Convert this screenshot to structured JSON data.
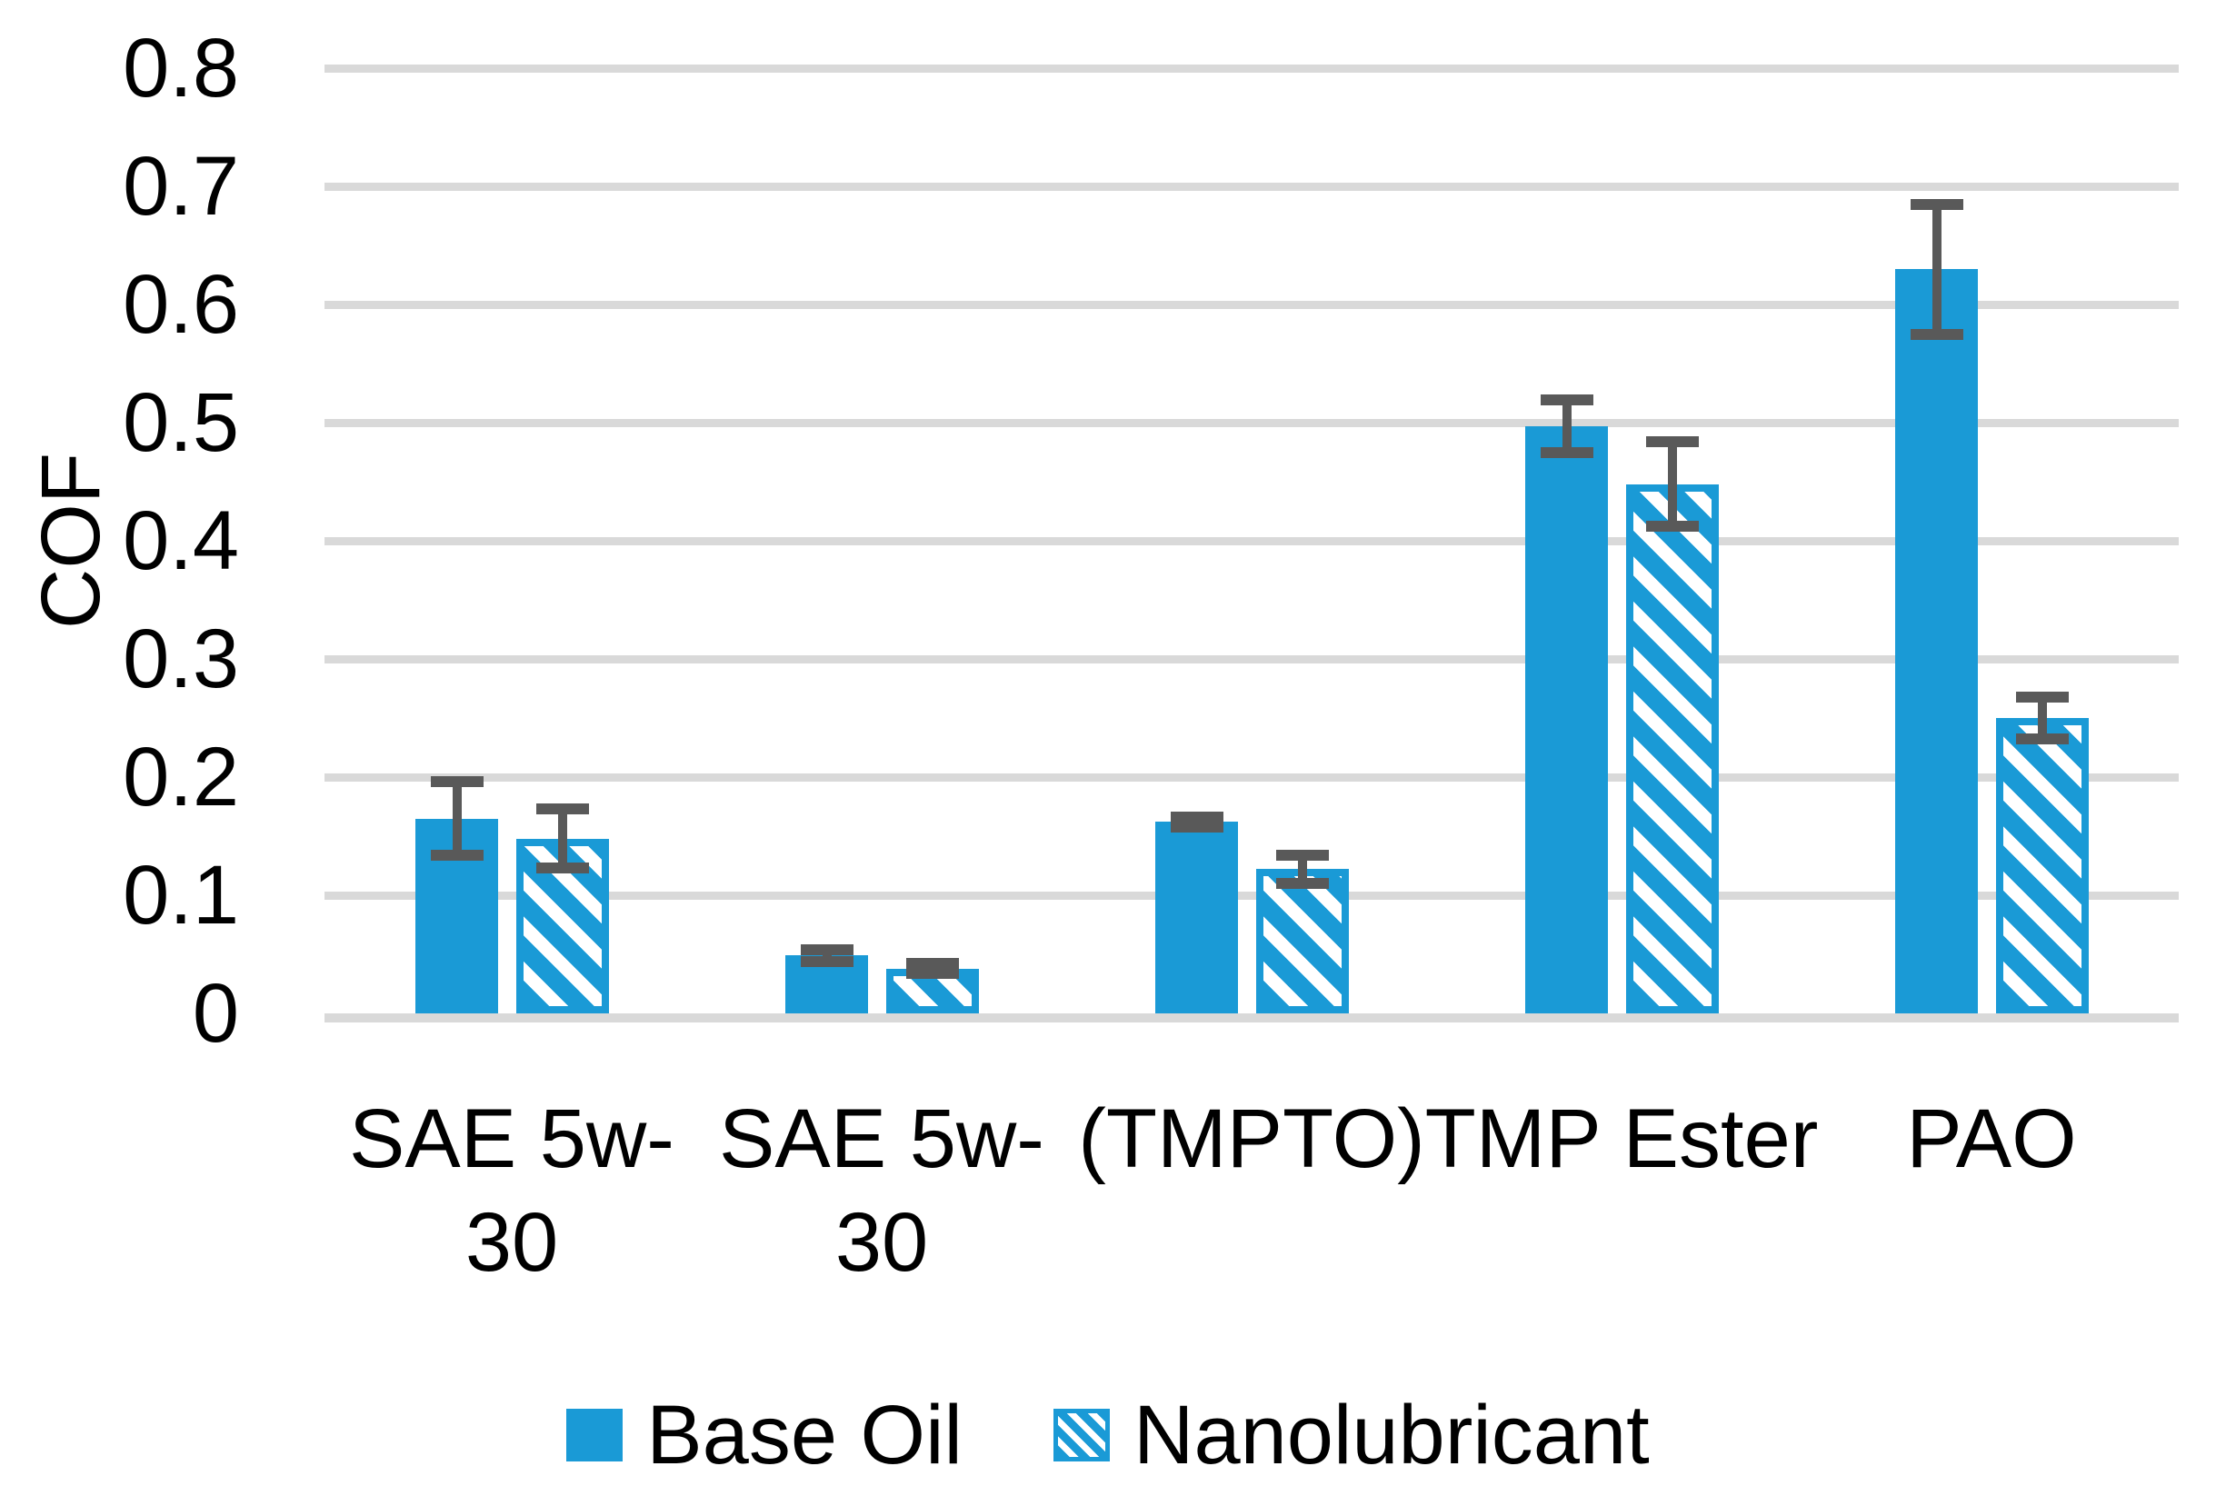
{
  "colors": {
    "bar_blue": "#1a9ad6",
    "error_gray": "#595959",
    "gridline": "#d9d9d9",
    "text": "#000000",
    "background": "#ffffff"
  },
  "chart_data": {
    "type": "bar",
    "title": "",
    "xlabel": "",
    "ylabel": "COF",
    "ylim": [
      0,
      0.8
    ],
    "ytick_step": 0.1,
    "ytick_labels": [
      "0.8",
      "0.7",
      "0.6",
      "0.5",
      "0.4",
      "0.3",
      "0.2",
      "0.1",
      "0"
    ],
    "grid": true,
    "legend_position": "bottom",
    "categories": [
      "SAE 5w-30",
      "SAE 5w-30",
      "(TMPTO)",
      "TMP Ester",
      "PAO"
    ],
    "category_label_lines": [
      [
        "SAE 5w-",
        "30"
      ],
      [
        "SAE 5w-",
        "30"
      ],
      [
        "(TMPTO)"
      ],
      [
        "TMP Ester"
      ],
      [
        "PAO"
      ]
    ],
    "series": [
      {
        "name": "Base Oil",
        "style": "solid",
        "values": [
          0.165,
          0.049,
          0.162,
          0.497,
          0.63
        ],
        "errors": [
          0.031,
          0.005,
          0.004,
          0.022,
          0.055
        ]
      },
      {
        "name": "Nanolubricant",
        "style": "hatched",
        "values": [
          0.148,
          0.038,
          0.122,
          0.448,
          0.25
        ],
        "errors": [
          0.025,
          0.004,
          0.012,
          0.036,
          0.018
        ]
      }
    ]
  },
  "legend": {
    "items": [
      {
        "label": "Base Oil",
        "swatch": "solid"
      },
      {
        "label": "Nanolubricant",
        "swatch": "hatched"
      }
    ]
  }
}
